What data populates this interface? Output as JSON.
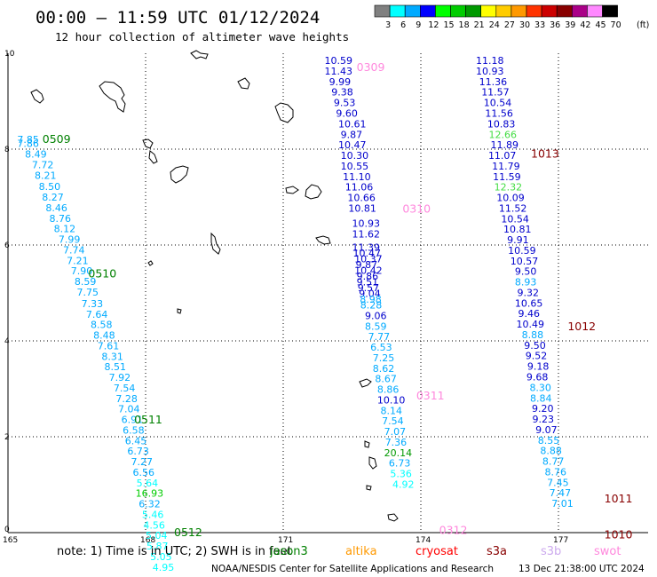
{
  "header": {
    "title": "00:00 – 11:59 UTC 01/12/2024",
    "subtitle": "12 hour collection of altimeter wave heights"
  },
  "legend": {
    "unit": "(ft)",
    "bins": [
      {
        "color": "#808080",
        "label": "3"
      },
      {
        "color": "#00ffff",
        "label": "6"
      },
      {
        "color": "#00aaff",
        "label": "9"
      },
      {
        "color": "#0000ff",
        "label": "12"
      },
      {
        "color": "#00ff00",
        "label": "15"
      },
      {
        "color": "#00cc00",
        "label": "18"
      },
      {
        "color": "#009900",
        "label": "21"
      },
      {
        "color": "#ffff00",
        "label": "24"
      },
      {
        "color": "#ffcc00",
        "label": "27"
      },
      {
        "color": "#ff9900",
        "label": "30"
      },
      {
        "color": "#ff3300",
        "label": "33"
      },
      {
        "color": "#cc0000",
        "label": "36"
      },
      {
        "color": "#880000",
        "label": "39"
      },
      {
        "color": "#aa0088",
        "label": "42"
      },
      {
        "color": "#ff88ff",
        "label": "45"
      },
      {
        "color": "#000000",
        "label": "70"
      }
    ]
  },
  "axes": {
    "x_ticks": [
      {
        "label": "165",
        "value": 165
      },
      {
        "label": "168",
        "value": 168
      },
      {
        "label": "171",
        "value": 171
      },
      {
        "label": "174",
        "value": 174
      },
      {
        "label": "177",
        "value": 177
      }
    ],
    "y_ticks": [
      {
        "label": "0",
        "value": 0
      },
      {
        "label": "2",
        "value": 2
      },
      {
        "label": "4",
        "value": 4
      },
      {
        "label": "6",
        "value": 6
      },
      {
        "label": "8",
        "value": 8
      },
      {
        "label": "10",
        "value": 10
      }
    ],
    "xlim": [
      165,
      178.8
    ],
    "ylim": [
      0,
      10
    ]
  },
  "passes": [
    {
      "label": "0509",
      "color": "#008000",
      "lon": 165.75,
      "lat": 8.2
    },
    {
      "label": "0510",
      "color": "#008000",
      "lon": 166.75,
      "lat": 5.4
    },
    {
      "label": "0511",
      "color": "#008000",
      "lon": 167.75,
      "lat": 2.35
    },
    {
      "label": "0512",
      "color": "#008000",
      "lon": 168.62,
      "lat": 0.0
    },
    {
      "label": "0309",
      "color": "#ff88dd",
      "lon": 172.6,
      "lat": 9.7
    },
    {
      "label": "0310",
      "color": "#ff88dd",
      "lon": 173.6,
      "lat": 6.75
    },
    {
      "label": "0311",
      "color": "#ff88dd",
      "lon": 173.9,
      "lat": 2.85
    },
    {
      "label": "0312",
      "color": "#ff88dd",
      "lon": 174.4,
      "lat": 0.05
    },
    {
      "label": "1013",
      "color": "#880000",
      "lon": 176.4,
      "lat": 7.9
    },
    {
      "label": "1012",
      "color": "#880000",
      "lon": 177.2,
      "lat": 4.3
    },
    {
      "label": "1011",
      "color": "#880000",
      "lon": 178.0,
      "lat": 0.7
    },
    {
      "label": "1010",
      "color": "#880000",
      "lon": 178.0,
      "lat": -0.05
    }
  ],
  "observations": {
    "track_0509_0512": [
      {
        "v": "7.85",
        "c": "#00aaff",
        "lon": 165.2,
        "lat": 8.2
      },
      {
        "v": "7.86",
        "c": "#00aaff",
        "lon": 165.2,
        "lat": 8.12
      },
      {
        "v": "8.49",
        "c": "#00aaff",
        "lon": 165.37,
        "lat": 7.9
      },
      {
        "v": "7.72",
        "c": "#00aaff",
        "lon": 165.52,
        "lat": 7.68
      },
      {
        "v": "8.21",
        "c": "#00aaff",
        "lon": 165.58,
        "lat": 7.45
      },
      {
        "v": "8.50",
        "c": "#00aaff",
        "lon": 165.67,
        "lat": 7.22
      },
      {
        "v": "8.27",
        "c": "#00aaff",
        "lon": 165.74,
        "lat": 7.0
      },
      {
        "v": "8.46",
        "c": "#00aaff",
        "lon": 165.82,
        "lat": 6.78
      },
      {
        "v": "8.76",
        "c": "#00aaff",
        "lon": 165.9,
        "lat": 6.56
      },
      {
        "v": "8.12",
        "c": "#00aaff",
        "lon": 166.0,
        "lat": 6.34
      },
      {
        "v": "7.99",
        "c": "#00aaff",
        "lon": 166.1,
        "lat": 6.12
      },
      {
        "v": "7.74",
        "c": "#00aaff",
        "lon": 166.2,
        "lat": 5.9
      },
      {
        "v": "7.21",
        "c": "#00aaff",
        "lon": 166.28,
        "lat": 5.68
      },
      {
        "v": "7.90",
        "c": "#00aaff",
        "lon": 166.37,
        "lat": 5.46
      },
      {
        "v": "8.59",
        "c": "#00aaff",
        "lon": 166.45,
        "lat": 5.24
      },
      {
        "v": "7.75",
        "c": "#00aaff",
        "lon": 166.5,
        "lat": 5.02
      },
      {
        "v": "7.33",
        "c": "#00aaff",
        "lon": 166.6,
        "lat": 4.78
      },
      {
        "v": "7.64",
        "c": "#00aaff",
        "lon": 166.7,
        "lat": 4.56
      },
      {
        "v": "8.58",
        "c": "#00aaff",
        "lon": 166.8,
        "lat": 4.34
      },
      {
        "v": "8.48",
        "c": "#00aaff",
        "lon": 166.86,
        "lat": 4.12
      },
      {
        "v": "7.61",
        "c": "#00aaff",
        "lon": 166.95,
        "lat": 3.9
      },
      {
        "v": "8.31",
        "c": "#00aaff",
        "lon": 167.04,
        "lat": 3.68
      },
      {
        "v": "8.51",
        "c": "#00aaff",
        "lon": 167.1,
        "lat": 3.46
      },
      {
        "v": "7.92",
        "c": "#00aaff",
        "lon": 167.2,
        "lat": 3.24
      },
      {
        "v": "7.54",
        "c": "#00aaff",
        "lon": 167.3,
        "lat": 3.02
      },
      {
        "v": "7.28",
        "c": "#00aaff",
        "lon": 167.35,
        "lat": 2.8
      },
      {
        "v": "7.04",
        "c": "#00aaff",
        "lon": 167.4,
        "lat": 2.58
      },
      {
        "v": "6.91",
        "c": "#00aaff",
        "lon": 167.47,
        "lat": 2.36
      },
      {
        "v": "6.58",
        "c": "#00aaff",
        "lon": 167.5,
        "lat": 2.14
      },
      {
        "v": "6.45",
        "c": "#00aaff",
        "lon": 167.55,
        "lat": 1.92
      },
      {
        "v": "6.73",
        "c": "#00aaff",
        "lon": 167.6,
        "lat": 1.7
      },
      {
        "v": "7.27",
        "c": "#00aaff",
        "lon": 167.68,
        "lat": 1.48
      },
      {
        "v": "6.56",
        "c": "#00aaff",
        "lon": 167.72,
        "lat": 1.26
      },
      {
        "v": "5.64",
        "c": "#00ffff",
        "lon": 167.8,
        "lat": 1.04
      },
      {
        "v": "16.93",
        "c": "#00cc00",
        "lon": 167.78,
        "lat": 0.82
      },
      {
        "v": "6.32",
        "c": "#00aaff",
        "lon": 167.85,
        "lat": 0.6
      },
      {
        "v": "5.46",
        "c": "#00ffff",
        "lon": 167.92,
        "lat": 0.38
      },
      {
        "v": "4.56",
        "c": "#00ffff",
        "lon": 167.95,
        "lat": 0.16
      },
      {
        "v": "5.04",
        "c": "#00ffff",
        "lon": 168.0,
        "lat": -0.06
      },
      {
        "v": "5.87",
        "c": "#00ffff",
        "lon": 168.02,
        "lat": -0.28
      },
      {
        "v": "5.05",
        "c": "#00ffff",
        "lon": 168.1,
        "lat": -0.5
      },
      {
        "v": "4.95",
        "c": "#00ffff",
        "lon": 168.15,
        "lat": -0.72
      }
    ],
    "track_0309_0312": [
      {
        "v": "10.59",
        "c": "#0000cc",
        "lon": 171.9,
        "lat": 9.85
      },
      {
        "v": "11.43",
        "c": "#0000cc",
        "lon": 171.9,
        "lat": 9.63
      },
      {
        "v": "9.99",
        "c": "#0000cc",
        "lon": 172.0,
        "lat": 9.41
      },
      {
        "v": "9.38",
        "c": "#0000cc",
        "lon": 172.05,
        "lat": 9.19
      },
      {
        "v": "9.53",
        "c": "#0000cc",
        "lon": 172.1,
        "lat": 8.97
      },
      {
        "v": "9.60",
        "c": "#0000cc",
        "lon": 172.15,
        "lat": 8.75
      },
      {
        "v": "10.61",
        "c": "#0000cc",
        "lon": 172.2,
        "lat": 8.53
      },
      {
        "v": "9.87",
        "c": "#0000cc",
        "lon": 172.25,
        "lat": 8.31
      },
      {
        "v": "10.47",
        "c": "#0000cc",
        "lon": 172.2,
        "lat": 8.09
      },
      {
        "v": "10.30",
        "c": "#0000cc",
        "lon": 172.25,
        "lat": 7.87
      },
      {
        "v": "10.55",
        "c": "#0000cc",
        "lon": 172.25,
        "lat": 7.65
      },
      {
        "v": "11.10",
        "c": "#0000cc",
        "lon": 172.3,
        "lat": 7.43
      },
      {
        "v": "11.06",
        "c": "#0000cc",
        "lon": 172.35,
        "lat": 7.21
      },
      {
        "v": "10.66",
        "c": "#0000cc",
        "lon": 172.4,
        "lat": 6.99
      },
      {
        "v": "10.81",
        "c": "#0000cc",
        "lon": 172.42,
        "lat": 6.77
      },
      {
        "v": "10.93",
        "c": "#0000cc",
        "lon": 172.5,
        "lat": 6.45
      },
      {
        "v": "11.62",
        "c": "#0000cc",
        "lon": 172.5,
        "lat": 6.23
      },
      {
        "v": "11.39",
        "c": "#0000cc",
        "lon": 172.5,
        "lat": 5.95
      },
      {
        "v": "10.47",
        "c": "#0000cc",
        "lon": 172.52,
        "lat": 5.83
      },
      {
        "v": "10.37",
        "c": "#0000cc",
        "lon": 172.55,
        "lat": 5.71
      },
      {
        "v": "9.87",
        "c": "#0000cc",
        "lon": 172.58,
        "lat": 5.59
      },
      {
        "v": "10.42",
        "c": "#0000cc",
        "lon": 172.55,
        "lat": 5.47
      },
      {
        "v": "9.86",
        "c": "#0000cc",
        "lon": 172.6,
        "lat": 5.35
      },
      {
        "v": "9.51",
        "c": "#0000cc",
        "lon": 172.6,
        "lat": 5.23
      },
      {
        "v": "9.57",
        "c": "#0000cc",
        "lon": 172.62,
        "lat": 5.11
      },
      {
        "v": "9.04",
        "c": "#0000cc",
        "lon": 172.65,
        "lat": 4.99
      },
      {
        "v": "8.98",
        "c": "#00aaff",
        "lon": 172.67,
        "lat": 4.87
      },
      {
        "v": "8.28",
        "c": "#00aaff",
        "lon": 172.68,
        "lat": 4.75
      },
      {
        "v": "9.06",
        "c": "#0000cc",
        "lon": 172.78,
        "lat": 4.53
      },
      {
        "v": "8.59",
        "c": "#00aaff",
        "lon": 172.78,
        "lat": 4.31
      },
      {
        "v": "7.77",
        "c": "#00aaff",
        "lon": 172.85,
        "lat": 4.09
      },
      {
        "v": "6.53",
        "c": "#00aaff",
        "lon": 172.9,
        "lat": 3.87
      },
      {
        "v": "7.25",
        "c": "#00aaff",
        "lon": 172.95,
        "lat": 3.65
      },
      {
        "v": "8.62",
        "c": "#00aaff",
        "lon": 172.95,
        "lat": 3.43
      },
      {
        "v": "8.67",
        "c": "#00aaff",
        "lon": 173.0,
        "lat": 3.21
      },
      {
        "v": "8.86",
        "c": "#00aaff",
        "lon": 173.05,
        "lat": 2.99
      },
      {
        "v": "10.10",
        "c": "#0000cc",
        "lon": 173.05,
        "lat": 2.77
      },
      {
        "v": "8.14",
        "c": "#00aaff",
        "lon": 173.12,
        "lat": 2.55
      },
      {
        "v": "7.54",
        "c": "#00aaff",
        "lon": 173.15,
        "lat": 2.33
      },
      {
        "v": "7.07",
        "c": "#00aaff",
        "lon": 173.2,
        "lat": 2.11
      },
      {
        "v": "7.36",
        "c": "#00aaff",
        "lon": 173.22,
        "lat": 1.89
      },
      {
        "v": "20.14",
        "c": "#009900",
        "lon": 173.2,
        "lat": 1.67
      },
      {
        "v": "6.73",
        "c": "#00aaff",
        "lon": 173.3,
        "lat": 1.45
      },
      {
        "v": "5.36",
        "c": "#00ffff",
        "lon": 173.33,
        "lat": 1.23
      },
      {
        "v": "4.92",
        "c": "#00ffff",
        "lon": 173.38,
        "lat": 1.01
      }
    ],
    "track_1013_1010": [
      {
        "v": "11.18",
        "c": "#0000cc",
        "lon": 175.2,
        "lat": 9.85
      },
      {
        "v": "10.93",
        "c": "#0000cc",
        "lon": 175.2,
        "lat": 9.63
      },
      {
        "v": "11.36",
        "c": "#0000cc",
        "lon": 175.27,
        "lat": 9.41
      },
      {
        "v": "11.57",
        "c": "#0000cc",
        "lon": 175.32,
        "lat": 9.19
      },
      {
        "v": "10.54",
        "c": "#0000cc",
        "lon": 175.37,
        "lat": 8.97
      },
      {
        "v": "11.56",
        "c": "#0000cc",
        "lon": 175.4,
        "lat": 8.75
      },
      {
        "v": "10.83",
        "c": "#0000cc",
        "lon": 175.45,
        "lat": 8.53
      },
      {
        "v": "12.66",
        "c": "#44dd44",
        "lon": 175.48,
        "lat": 8.31
      },
      {
        "v": "11.89",
        "c": "#0000cc",
        "lon": 175.52,
        "lat": 8.09
      },
      {
        "v": "11.07",
        "c": "#0000cc",
        "lon": 175.47,
        "lat": 7.87
      },
      {
        "v": "11.79",
        "c": "#0000cc",
        "lon": 175.55,
        "lat": 7.65
      },
      {
        "v": "11.59",
        "c": "#0000cc",
        "lon": 175.57,
        "lat": 7.43
      },
      {
        "v": "12.32",
        "c": "#44dd44",
        "lon": 175.6,
        "lat": 7.21
      },
      {
        "v": "10.09",
        "c": "#0000cc",
        "lon": 175.65,
        "lat": 6.99
      },
      {
        "v": "11.52",
        "c": "#0000cc",
        "lon": 175.7,
        "lat": 6.77
      },
      {
        "v": "10.54",
        "c": "#0000cc",
        "lon": 175.75,
        "lat": 6.55
      },
      {
        "v": "10.81",
        "c": "#0000cc",
        "lon": 175.8,
        "lat": 6.33
      },
      {
        "v": "9.91",
        "c": "#0000cc",
        "lon": 175.88,
        "lat": 6.11
      },
      {
        "v": "10.59",
        "c": "#0000cc",
        "lon": 175.9,
        "lat": 5.89
      },
      {
        "v": "10.57",
        "c": "#0000cc",
        "lon": 175.95,
        "lat": 5.67
      },
      {
        "v": "9.50",
        "c": "#0000cc",
        "lon": 176.05,
        "lat": 5.45
      },
      {
        "v": "8.93",
        "c": "#00aaff",
        "lon": 176.05,
        "lat": 5.23
      },
      {
        "v": "9.32",
        "c": "#0000cc",
        "lon": 176.1,
        "lat": 5.01
      },
      {
        "v": "10.65",
        "c": "#0000cc",
        "lon": 176.05,
        "lat": 4.79
      },
      {
        "v": "9.46",
        "c": "#0000cc",
        "lon": 176.12,
        "lat": 4.57
      },
      {
        "v": "10.49",
        "c": "#0000cc",
        "lon": 176.08,
        "lat": 4.35
      },
      {
        "v": "8.88",
        "c": "#00aaff",
        "lon": 176.2,
        "lat": 4.13
      },
      {
        "v": "9.50",
        "c": "#0000cc",
        "lon": 176.25,
        "lat": 3.91
      },
      {
        "v": "9.52",
        "c": "#0000cc",
        "lon": 176.28,
        "lat": 3.69
      },
      {
        "v": "9.18",
        "c": "#0000cc",
        "lon": 176.32,
        "lat": 3.47
      },
      {
        "v": "9.68",
        "c": "#0000cc",
        "lon": 176.3,
        "lat": 3.25
      },
      {
        "v": "8.30",
        "c": "#00aaff",
        "lon": 176.37,
        "lat": 3.03
      },
      {
        "v": "8.84",
        "c": "#00aaff",
        "lon": 176.38,
        "lat": 2.81
      },
      {
        "v": "9.20",
        "c": "#0000cc",
        "lon": 176.42,
        "lat": 2.59
      },
      {
        "v": "9.23",
        "c": "#0000cc",
        "lon": 176.43,
        "lat": 2.37
      },
      {
        "v": "9.07",
        "c": "#0000cc",
        "lon": 176.5,
        "lat": 2.15
      },
      {
        "v": "8.55",
        "c": "#00aaff",
        "lon": 176.55,
        "lat": 1.93
      },
      {
        "v": "8.88",
        "c": "#00aaff",
        "lon": 176.6,
        "lat": 1.71
      },
      {
        "v": "8.77",
        "c": "#00aaff",
        "lon": 176.65,
        "lat": 1.49
      },
      {
        "v": "8.76",
        "c": "#00aaff",
        "lon": 176.7,
        "lat": 1.27
      },
      {
        "v": "7.45",
        "c": "#00aaff",
        "lon": 176.75,
        "lat": 1.05
      },
      {
        "v": "7.47",
        "c": "#00aaff",
        "lon": 176.8,
        "lat": 0.83
      },
      {
        "v": "7.01",
        "c": "#00aaff",
        "lon": 176.85,
        "lat": 0.61
      }
    ]
  },
  "footer": {
    "note": "note:  1) Time is in UTC;  2) SWH is in feet",
    "satellites": [
      {
        "label": "jason3",
        "color": "#008000"
      },
      {
        "label": "altika",
        "color": "#ff9900"
      },
      {
        "label": "cryosat",
        "color": "#ff0000"
      },
      {
        "label": "s3a",
        "color": "#880000"
      },
      {
        "label": "s3b",
        "color": "#ccaaee"
      },
      {
        "label": "swot",
        "color": "#ff88dd"
      }
    ],
    "credit": "NOAA/NESDIS Center for Satellite Applications and Research",
    "generated": "13 Dec 21:38:00 UTC 2024"
  }
}
